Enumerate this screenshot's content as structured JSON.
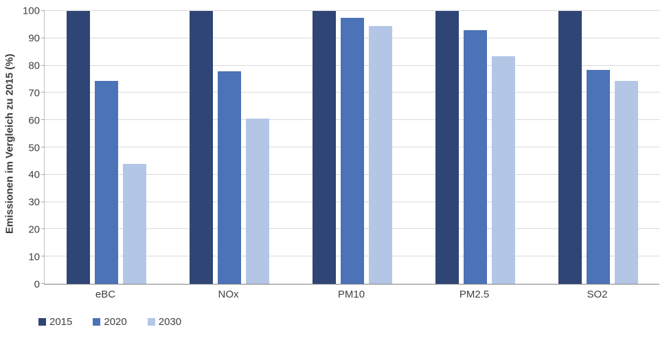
{
  "chart_data": {
    "type": "bar",
    "title": "",
    "xlabel": "",
    "ylabel": "Emissionen im Vergleich zu 2015 (%)",
    "ylim": [
      0,
      100
    ],
    "ytick_step": 10,
    "grid": true,
    "legend_position": "bottom-left",
    "categories": [
      "eBC",
      "NOx",
      "PM10",
      "PM2.5",
      "SO2"
    ],
    "series": [
      {
        "name": "2015",
        "color": "#2f4575",
        "values": [
          100,
          100,
          100,
          100,
          100
        ]
      },
      {
        "name": "2020",
        "color": "#4c72b8",
        "values": [
          74.5,
          78,
          97.5,
          93,
          78.5
        ]
      },
      {
        "name": "2030",
        "color": "#b4c6e6",
        "values": [
          44,
          60.5,
          94.5,
          83.5,
          74.5
        ]
      }
    ],
    "axis_colors": {
      "gridline": "#d9d9d9",
      "axis_line": "#808080",
      "tick_text": "#404040"
    }
  }
}
